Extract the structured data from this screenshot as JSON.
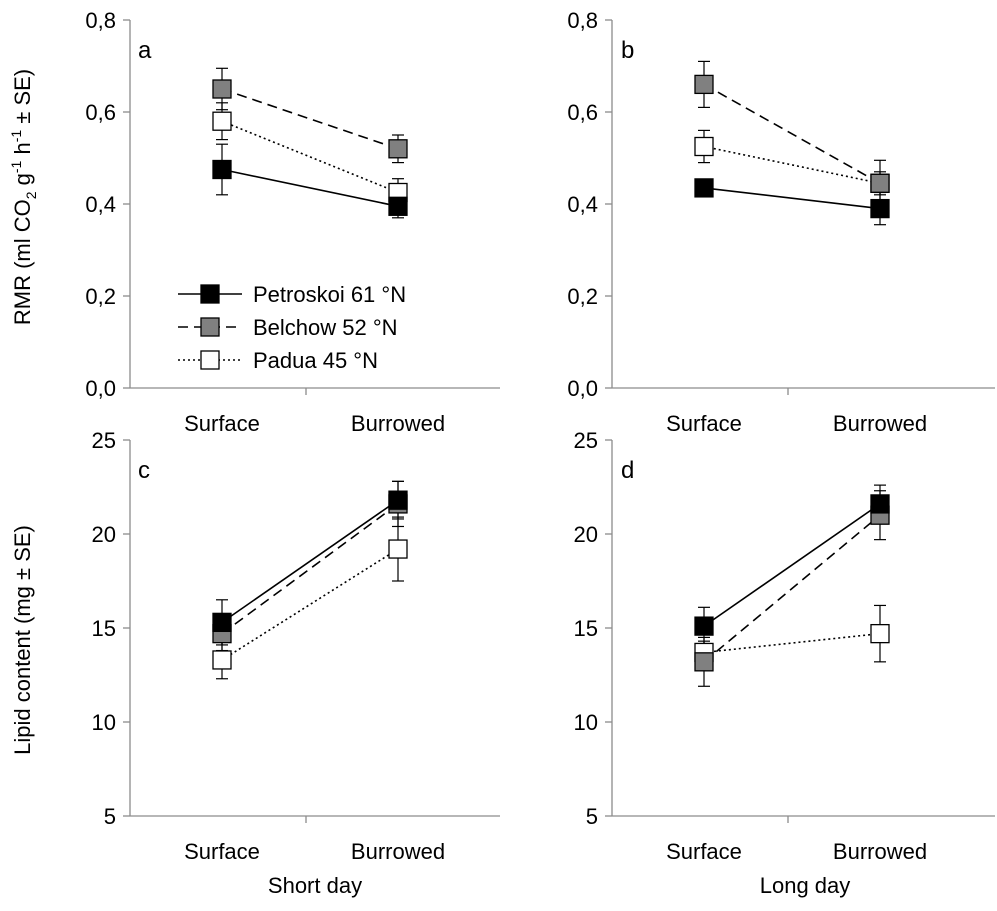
{
  "figure": {
    "y_label_top_parts": [
      "RMR (ml CO",
      "2",
      " g",
      "-1",
      " h",
      "-1",
      " ± SE)"
    ],
    "y_label_bottom": "Lipid content (mg ± SE)",
    "x_group_left": "Short day",
    "x_group_right": "Long day"
  },
  "legend": {
    "placement": "lower-center of panel a",
    "entries": [
      {
        "label": "Petroskoi  61 °N",
        "series": "petroskoi"
      },
      {
        "label": "Belchow  52 °N",
        "series": "belchow"
      },
      {
        "label": "Padua  45 °N",
        "series": "padua"
      }
    ]
  },
  "series_styles": {
    "petroskoi": {
      "marker_fill": "#000000",
      "line": "solid"
    },
    "belchow": {
      "marker_fill": "#808080",
      "line": "dashed"
    },
    "padua": {
      "marker_fill": "#ffffff",
      "line": "dotted"
    }
  },
  "chart_data": [
    {
      "panel": "a",
      "type": "line",
      "categories": [
        "Surface",
        "Burrowed"
      ],
      "ylim": [
        0,
        0.8
      ],
      "yticks": [
        "0,0",
        "0,2",
        "0,4",
        "0,6",
        "0,8"
      ],
      "ytick_values": [
        0,
        0.2,
        0.4,
        0.6,
        0.8
      ],
      "grid": false,
      "series": [
        {
          "name": "Petroskoi  61 °N",
          "key": "petroskoi",
          "values": [
            0.475,
            0.395
          ],
          "se": [
            0.055,
            0.025
          ]
        },
        {
          "name": "Belchow  52 °N",
          "key": "belchow",
          "values": [
            0.65,
            0.52
          ],
          "se": [
            0.045,
            0.03
          ]
        },
        {
          "name": "Padua  45 °N",
          "key": "padua",
          "values": [
            0.58,
            0.425
          ],
          "se": [
            0.04,
            0.03
          ]
        }
      ]
    },
    {
      "panel": "b",
      "type": "line",
      "categories": [
        "Surface",
        "Burrowed"
      ],
      "ylim": [
        0,
        0.8
      ],
      "yticks": [
        "0,0",
        "0,2",
        "0,4",
        "0,6",
        "0,8"
      ],
      "ytick_values": [
        0,
        0.2,
        0.4,
        0.6,
        0.8
      ],
      "grid": false,
      "series": [
        {
          "name": "Petroskoi  61 °N",
          "key": "petroskoi",
          "values": [
            0.435,
            0.39
          ],
          "se": [
            0.012,
            0.035
          ]
        },
        {
          "name": "Belchow  52 °N",
          "key": "belchow",
          "values": [
            0.66,
            0.445
          ],
          "se": [
            0.05,
            0.025
          ]
        },
        {
          "name": "Padua  45 °N",
          "key": "padua",
          "values": [
            0.525,
            0.445
          ],
          "se": [
            0.035,
            0.05
          ]
        }
      ]
    },
    {
      "panel": "c",
      "type": "line",
      "categories": [
        "Surface",
        "Burrowed"
      ],
      "ylim": [
        5,
        25
      ],
      "yticks": [
        "5",
        "10",
        "15",
        "20",
        "25"
      ],
      "ytick_values": [
        5,
        10,
        15,
        20,
        25
      ],
      "grid": false,
      "series": [
        {
          "name": "Petroskoi  61 °N",
          "key": "petroskoi",
          "values": [
            15.3,
            21.8
          ],
          "se": [
            1.2,
            1.0
          ]
        },
        {
          "name": "Belchow  52 °N",
          "key": "belchow",
          "values": [
            14.7,
            21.6
          ],
          "se": [
            0.9,
            1.2
          ]
        },
        {
          "name": "Padua  45 °N",
          "key": "padua",
          "values": [
            13.3,
            19.2
          ],
          "se": [
            1.0,
            1.7
          ]
        }
      ]
    },
    {
      "panel": "d",
      "type": "line",
      "categories": [
        "Surface",
        "Burrowed"
      ],
      "ylim": [
        5,
        25
      ],
      "yticks": [
        "5",
        "10",
        "15",
        "20",
        "25"
      ],
      "ytick_values": [
        5,
        10,
        15,
        20,
        25
      ],
      "grid": false,
      "series": [
        {
          "name": "Petroskoi  61 °N",
          "key": "petroskoi",
          "values": [
            15.1,
            21.6
          ],
          "se": [
            1.0,
            1.0
          ]
        },
        {
          "name": "Belchow  52 °N",
          "key": "belchow",
          "values": [
            13.2,
            21.0
          ],
          "se": [
            1.3,
            1.3
          ]
        },
        {
          "name": "Padua  45 °N",
          "key": "padua",
          "values": [
            13.7,
            14.7
          ],
          "se": [
            0.6,
            1.5
          ]
        }
      ]
    }
  ]
}
